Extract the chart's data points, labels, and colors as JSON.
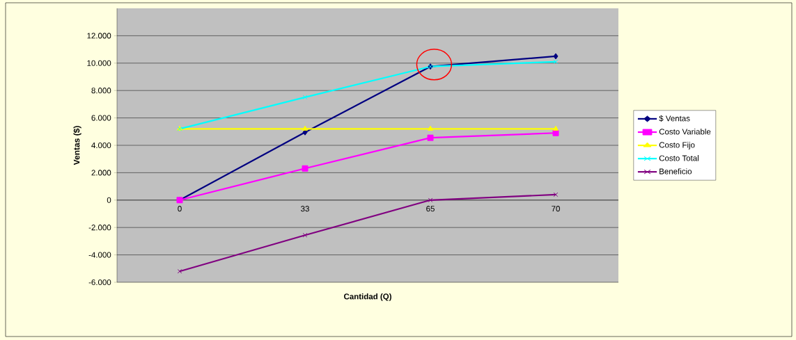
{
  "chart_data": {
    "type": "line",
    "xlabel": "Cantidad (Q)",
    "ylabel": "Ventas ($)",
    "categories": [
      "0",
      "33",
      "65",
      "70"
    ],
    "series": [
      {
        "name": "$ Ventas",
        "color": "#000080",
        "marker": "diamond",
        "values": [
          0,
          4950,
          9750,
          10500
        ]
      },
      {
        "name": "Costo Variable",
        "color": "#ff00ff",
        "marker": "square",
        "values": [
          0,
          2310,
          4550,
          4900
        ]
      },
      {
        "name": "Costo Fijo",
        "color": "#ffff00",
        "marker": "triangle",
        "values": [
          5200,
          5200,
          5200,
          5200
        ]
      },
      {
        "name": "Costo Total",
        "color": "#00ffff",
        "marker": "cross",
        "values": [
          5200,
          7510,
          9750,
          10100
        ]
      },
      {
        "name": "Beneficio",
        "color": "#800080",
        "marker": "cross",
        "values": [
          -5200,
          -2560,
          0,
          400
        ]
      }
    ],
    "ylim": [
      -6000,
      14000
    ],
    "yticks": [
      {
        "value": -6000,
        "label": "-6.000"
      },
      {
        "value": -4000,
        "label": "-4.000"
      },
      {
        "value": -2000,
        "label": "-2.000"
      },
      0,
      {
        "value": 2000,
        "label": "2.000"
      },
      {
        "value": 4000,
        "label": "4.000"
      },
      {
        "value": 6000,
        "label": "6.000"
      },
      {
        "value": 8000,
        "label": "8.000"
      },
      {
        "value": 10000,
        "label": "10.000"
      },
      {
        "value": 12000,
        "label": "12.000"
      }
    ],
    "grid": "y",
    "legend": "right",
    "line_style": "solid"
  }
}
